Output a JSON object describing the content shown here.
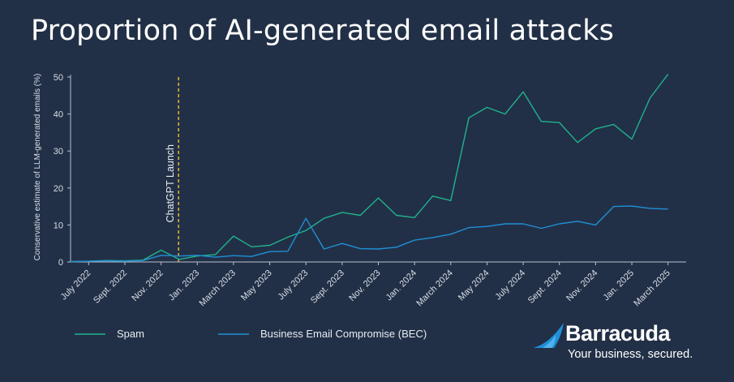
{
  "chart_data": {
    "type": "line",
    "title": "Proportion of AI-generated email attacks",
    "ylabel": "Conservative estimate of LLM-generated emails (%)",
    "ylim": [
      0,
      50
    ],
    "yticks": [
      0,
      10,
      20,
      30,
      40,
      50
    ],
    "grid": false,
    "legend_position": "bottom-left",
    "x_tick_labels": [
      "July 2022",
      "Sept. 2022",
      "Nov. 2022",
      "Jan. 2023",
      "March 2023",
      "May 2023",
      "July 2023",
      "Sept. 2023",
      "Nov. 2023",
      "Jan. 2024",
      "March 2024",
      "May 2024",
      "July 2024",
      "Sept. 2024",
      "Nov. 2024",
      "Jan. 2025",
      "March 2025"
    ],
    "x": [
      "2022-06",
      "2022-07",
      "2022-08",
      "2022-09",
      "2022-10",
      "2022-11",
      "2022-12",
      "2023-01",
      "2023-02",
      "2023-03",
      "2023-04",
      "2023-05",
      "2023-06",
      "2023-07",
      "2023-08",
      "2023-09",
      "2023-10",
      "2023-11",
      "2023-12",
      "2024-01",
      "2024-02",
      "2024-03",
      "2024-04",
      "2024-05",
      "2024-06",
      "2024-07",
      "2024-08",
      "2024-09",
      "2024-10",
      "2024-11",
      "2024-12",
      "2025-01",
      "2025-02",
      "2025-03",
      "2025-04"
    ],
    "series": [
      {
        "name": "Spam",
        "color": "#1fb28c",
        "values": [
          0.1,
          0.2,
          0.4,
          0.3,
          0.5,
          3.2,
          0.7,
          1.6,
          2.0,
          7.0,
          4.1,
          4.5,
          6.7,
          8.5,
          11.8,
          13.4,
          12.6,
          17.3,
          12.6,
          12.0,
          17.8,
          16.6,
          39.0,
          41.8,
          40.0,
          46.0,
          38.0,
          37.7,
          32.3,
          36.0,
          37.2,
          33.2,
          44.3,
          50.8,
          null
        ]
      },
      {
        "name": "Business Email Compromise (BEC)",
        "color": "#1f8fd6",
        "values": [
          0.1,
          0.2,
          0.3,
          0.2,
          0.4,
          1.8,
          1.6,
          1.8,
          1.3,
          1.7,
          1.5,
          2.8,
          2.9,
          11.8,
          3.5,
          5.0,
          3.6,
          3.5,
          4.0,
          5.9,
          6.6,
          7.5,
          9.3,
          9.6,
          10.3,
          10.3,
          9.1,
          10.3,
          11.0,
          10.0,
          15.0,
          15.1,
          14.5,
          14.3,
          null
        ]
      }
    ],
    "annotations": [
      {
        "label": "ChatGPT Launch",
        "x": "2022-11-30",
        "color": "#e8b530"
      }
    ]
  },
  "brand": {
    "name": "Barracuda",
    "tagline": "Your business, secured.",
    "mark_icon": "barracuda-fin-icon",
    "color": "#1f8fd6"
  }
}
